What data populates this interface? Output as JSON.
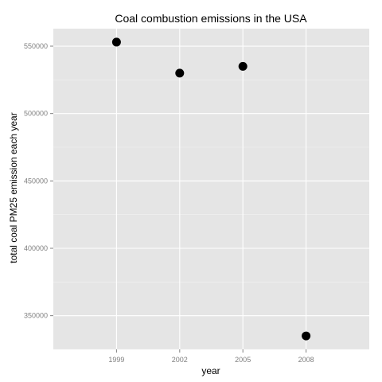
{
  "chart_data": {
    "type": "scatter",
    "title": "Coal combustion emissions in the USA",
    "xlabel": "year",
    "ylabel": "total coal PM25 emission each year",
    "x_categories": [
      "1999",
      "2002",
      "2005",
      "2008"
    ],
    "points": [
      {
        "x": "1999",
        "y": 553000
      },
      {
        "x": "2002",
        "y": 530000
      },
      {
        "x": "2005",
        "y": 535000
      },
      {
        "x": "2008",
        "y": 335000
      }
    ],
    "yticks": [
      350000,
      400000,
      450000,
      500000,
      550000
    ],
    "ylim": [
      325000,
      563000
    ],
    "grid": true,
    "colors": {
      "panel_background": "#e5e5e5",
      "gridline": "#ffffff",
      "point": "#000000",
      "tick_label": "#7f7f7f"
    }
  }
}
